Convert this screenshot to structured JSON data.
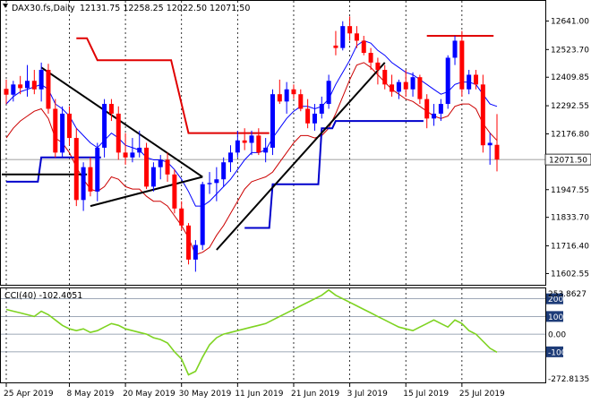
{
  "header": {
    "symbol": "DAX30.fs,Daily",
    "ohlc": "12131.75 12258.25 12022.50 12071.50"
  },
  "indicator": {
    "label": "CCI(40) -102.4051",
    "levels": [
      "200",
      "100",
      "0.00",
      "-100"
    ],
    "scale_max": "253.8627",
    "scale_min": "-272.8135"
  },
  "price_axis": {
    "ticks": [
      "12641.00",
      "12523.70",
      "12409.85",
      "12292.55",
      "12176.80",
      "11947.55",
      "11833.70",
      "11716.40",
      "11602.55"
    ],
    "current_price": "12071.50"
  },
  "date_axis": {
    "labels": [
      "25 Apr 2019",
      "8 May 2019",
      "20 May 2019",
      "30 May 2019",
      "11 Jun 2019",
      "21 Jun 2019",
      "3 Jul 2019",
      "15 Jul 2019",
      "25 Jul 2019"
    ]
  },
  "colors": {
    "bull": "#0000ff",
    "bear": "#ff0000",
    "bollinger_mid": "#0000ff",
    "bollinger_low": "#cc0000",
    "channel_red": "#e00000",
    "channel_blue": "#0000cc",
    "trendline": "#000000",
    "cci": "#7ed321",
    "axis_highlight": "#1e3c78"
  },
  "chart_data": {
    "type": "candlestick",
    "title": "DAX30.fs,Daily",
    "ylim": [
      11560,
      12720
    ],
    "candles": [
      {
        "d": "2019-04-25",
        "o": 12362,
        "h": 12400,
        "l": 12300,
        "c": 12338
      },
      {
        "d": "2019-04-26",
        "o": 12338,
        "h": 12395,
        "l": 12310,
        "c": 12380
      },
      {
        "d": "2019-04-29",
        "o": 12380,
        "h": 12415,
        "l": 12340,
        "c": 12365
      },
      {
        "d": "2019-04-30",
        "o": 12365,
        "h": 12460,
        "l": 12330,
        "c": 12395
      },
      {
        "d": "2019-05-01",
        "o": 12395,
        "h": 12440,
        "l": 12340,
        "c": 12360
      },
      {
        "d": "2019-05-02",
        "o": 12360,
        "h": 12470,
        "l": 12310,
        "c": 12440
      },
      {
        "d": "2019-05-03",
        "o": 12440,
        "h": 12465,
        "l": 12260,
        "c": 12280
      },
      {
        "d": "2019-05-06",
        "o": 12280,
        "h": 12320,
        "l": 12080,
        "c": 12100
      },
      {
        "d": "2019-05-07",
        "o": 12100,
        "h": 12290,
        "l": 12080,
        "c": 12260
      },
      {
        "d": "2019-05-08",
        "o": 12260,
        "h": 12290,
        "l": 12130,
        "c": 12160
      },
      {
        "d": "2019-05-09",
        "o": 12160,
        "h": 12200,
        "l": 11880,
        "c": 11905
      },
      {
        "d": "2019-05-10",
        "o": 11905,
        "h": 12060,
        "l": 11860,
        "c": 12040
      },
      {
        "d": "2019-05-13",
        "o": 12040,
        "h": 12080,
        "l": 11920,
        "c": 11940
      },
      {
        "d": "2019-05-14",
        "o": 11940,
        "h": 12140,
        "l": 11900,
        "c": 12120
      },
      {
        "d": "2019-05-15",
        "o": 12120,
        "h": 12320,
        "l": 12080,
        "c": 12300
      },
      {
        "d": "2019-05-16",
        "o": 12300,
        "h": 12320,
        "l": 12230,
        "c": 12260
      },
      {
        "d": "2019-05-17",
        "o": 12260,
        "h": 12290,
        "l": 12070,
        "c": 12100
      },
      {
        "d": "2019-05-20",
        "o": 12100,
        "h": 12180,
        "l": 12050,
        "c": 12080
      },
      {
        "d": "2019-05-21",
        "o": 12080,
        "h": 12160,
        "l": 12060,
        "c": 12100
      },
      {
        "d": "2019-05-22",
        "o": 12100,
        "h": 12190,
        "l": 12080,
        "c": 12120
      },
      {
        "d": "2019-05-23",
        "o": 12120,
        "h": 12140,
        "l": 11950,
        "c": 11960
      },
      {
        "d": "2019-05-24",
        "o": 11960,
        "h": 12060,
        "l": 11940,
        "c": 12040
      },
      {
        "d": "2019-05-27",
        "o": 12040,
        "h": 12090,
        "l": 11990,
        "c": 12070
      },
      {
        "d": "2019-05-28",
        "o": 12070,
        "h": 12100,
        "l": 11980,
        "c": 12010
      },
      {
        "d": "2019-05-29",
        "o": 12010,
        "h": 12030,
        "l": 11850,
        "c": 11870
      },
      {
        "d": "2019-05-30",
        "o": 11870,
        "h": 11900,
        "l": 11780,
        "c": 11800
      },
      {
        "d": "2019-05-31",
        "o": 11800,
        "h": 11810,
        "l": 11640,
        "c": 11660
      },
      {
        "d": "2019-06-03",
        "o": 11660,
        "h": 11740,
        "l": 11610,
        "c": 11720
      },
      {
        "d": "2019-06-04",
        "o": 11720,
        "h": 11980,
        "l": 11700,
        "c": 11970
      },
      {
        "d": "2019-06-05",
        "o": 11970,
        "h": 12020,
        "l": 11930,
        "c": 11975
      },
      {
        "d": "2019-06-06",
        "o": 11975,
        "h": 12040,
        "l": 11900,
        "c": 11990
      },
      {
        "d": "2019-06-07",
        "o": 11990,
        "h": 12080,
        "l": 11960,
        "c": 12060
      },
      {
        "d": "2019-06-10",
        "o": 12060,
        "h": 12130,
        "l": 12020,
        "c": 12100
      },
      {
        "d": "2019-06-11",
        "o": 12100,
        "h": 12190,
        "l": 12080,
        "c": 12150
      },
      {
        "d": "2019-06-12",
        "o": 12150,
        "h": 12200,
        "l": 12110,
        "c": 12140
      },
      {
        "d": "2019-06-13",
        "o": 12140,
        "h": 12190,
        "l": 12090,
        "c": 12170
      },
      {
        "d": "2019-06-14",
        "o": 12170,
        "h": 12200,
        "l": 12090,
        "c": 12100
      },
      {
        "d": "2019-06-17",
        "o": 12100,
        "h": 12160,
        "l": 12060,
        "c": 12120
      },
      {
        "d": "2019-06-18",
        "o": 12120,
        "h": 12360,
        "l": 12090,
        "c": 12340
      },
      {
        "d": "2019-06-19",
        "o": 12340,
        "h": 12400,
        "l": 12300,
        "c": 12310
      },
      {
        "d": "2019-06-20",
        "o": 12310,
        "h": 12390,
        "l": 12260,
        "c": 12360
      },
      {
        "d": "2019-06-21",
        "o": 12360,
        "h": 12380,
        "l": 12320,
        "c": 12340
      },
      {
        "d": "2019-06-24",
        "o": 12340,
        "h": 12360,
        "l": 12270,
        "c": 12280
      },
      {
        "d": "2019-06-25",
        "o": 12280,
        "h": 12320,
        "l": 12200,
        "c": 12220
      },
      {
        "d": "2019-06-26",
        "o": 12220,
        "h": 12300,
        "l": 12190,
        "c": 12260
      },
      {
        "d": "2019-06-27",
        "o": 12260,
        "h": 12330,
        "l": 12240,
        "c": 12300
      },
      {
        "d": "2019-06-28",
        "o": 12300,
        "h": 12420,
        "l": 12280,
        "c": 12395
      },
      {
        "d": "2019-07-01",
        "o": 12540,
        "h": 12600,
        "l": 12500,
        "c": 12530
      },
      {
        "d": "2019-07-02",
        "o": 12530,
        "h": 12640,
        "l": 12520,
        "c": 12620
      },
      {
        "d": "2019-07-03",
        "o": 12620,
        "h": 12660,
        "l": 12560,
        "c": 12590
      },
      {
        "d": "2019-07-04",
        "o": 12590,
        "h": 12620,
        "l": 12530,
        "c": 12560
      },
      {
        "d": "2019-07-05",
        "o": 12560,
        "h": 12580,
        "l": 12500,
        "c": 12510
      },
      {
        "d": "2019-07-08",
        "o": 12510,
        "h": 12530,
        "l": 12440,
        "c": 12470
      },
      {
        "d": "2019-07-09",
        "o": 12470,
        "h": 12490,
        "l": 12380,
        "c": 12440
      },
      {
        "d": "2019-07-10",
        "o": 12440,
        "h": 12460,
        "l": 12360,
        "c": 12380
      },
      {
        "d": "2019-07-11",
        "o": 12380,
        "h": 12420,
        "l": 12330,
        "c": 12350
      },
      {
        "d": "2019-07-12",
        "o": 12350,
        "h": 12400,
        "l": 12320,
        "c": 12390
      },
      {
        "d": "2019-07-15",
        "o": 12390,
        "h": 12440,
        "l": 12330,
        "c": 12360
      },
      {
        "d": "2019-07-16",
        "o": 12360,
        "h": 12430,
        "l": 12330,
        "c": 12410
      },
      {
        "d": "2019-07-17",
        "o": 12410,
        "h": 12420,
        "l": 12300,
        "c": 12320
      },
      {
        "d": "2019-07-18",
        "o": 12320,
        "h": 12340,
        "l": 12200,
        "c": 12240
      },
      {
        "d": "2019-07-19",
        "o": 12240,
        "h": 12300,
        "l": 12210,
        "c": 12260
      },
      {
        "d": "2019-07-22",
        "o": 12260,
        "h": 12320,
        "l": 12230,
        "c": 12300
      },
      {
        "d": "2019-07-23",
        "o": 12300,
        "h": 12500,
        "l": 12280,
        "c": 12490
      },
      {
        "d": "2019-07-24",
        "o": 12490,
        "h": 12580,
        "l": 12460,
        "c": 12560
      },
      {
        "d": "2019-07-25",
        "o": 12560,
        "h": 12600,
        "l": 12330,
        "c": 12360
      },
      {
        "d": "2019-07-26",
        "o": 12360,
        "h": 12440,
        "l": 12340,
        "c": 12420
      },
      {
        "d": "2019-07-29",
        "o": 12420,
        "h": 12440,
        "l": 12360,
        "c": 12380
      },
      {
        "d": "2019-07-30",
        "o": 12380,
        "h": 12420,
        "l": 12100,
        "c": 12130
      },
      {
        "d": "2019-07-31",
        "o": 12130,
        "h": 12180,
        "l": 12050,
        "c": 12140
      },
      {
        "d": "2019-08-01",
        "o": 12131.75,
        "h": 12258.25,
        "l": 12022.5,
        "c": 12071.5
      }
    ],
    "bollinger_mid": [
      12300,
      12330,
      12350,
      12360,
      12370,
      12380,
      12360,
      12300,
      12280,
      12250,
      12200,
      12170,
      12140,
      12120,
      12150,
      12180,
      12160,
      12130,
      12120,
      12110,
      12080,
      12070,
      12070,
      12060,
      12030,
      11990,
      11940,
      11880,
      11880,
      11900,
      11930,
      11960,
      11990,
      12030,
      12070,
      12100,
      12100,
      12110,
      12160,
      12200,
      12240,
      12270,
      12290,
      12290,
      12280,
      12290,
      12320,
      12380,
      12430,
      12480,
      12540,
      12560,
      12550,
      12520,
      12500,
      12470,
      12450,
      12430,
      12420,
      12400,
      12380,
      12360,
      12340,
      12350,
      12380,
      12390,
      12390,
      12380,
      12340,
      12300,
      12290
    ],
    "bollinger_low": [
      12160,
      12200,
      12230,
      12250,
      12270,
      12280,
      12240,
      12160,
      12140,
      12100,
      12040,
      11990,
      11950,
      11940,
      11960,
      12000,
      11990,
      11960,
      11950,
      11950,
      11920,
      11900,
      11900,
      11880,
      11840,
      11800,
      11750,
      11680,
      11690,
      11710,
      11760,
      11800,
      11850,
      11900,
      11950,
      11980,
      11990,
      12000,
      12020,
      12060,
      12100,
      12140,
      12170,
      12170,
      12160,
      12170,
      12200,
      12260,
      12330,
      12400,
      12460,
      12470,
      12450,
      12420,
      12390,
      12360,
      12340,
      12320,
      12310,
      12290,
      12270,
      12250,
      12240,
      12250,
      12290,
      12300,
      12300,
      12280,
      12220,
      12180,
      12150
    ],
    "channel_high": [
      {
        "from": "2019-05-09",
        "to": "2019-05-10",
        "value": 12570
      },
      {
        "from": "2019-05-14",
        "to": "2019-05-28",
        "value": 12480
      },
      {
        "from": "2019-05-31",
        "to": "2019-06-17",
        "value": 12180
      },
      {
        "from": "2019-07-18",
        "to": "2019-07-31",
        "value": 12580
      }
    ],
    "channel_low": [
      {
        "from": "2019-04-25",
        "to": "2019-05-01",
        "value": 11980
      },
      {
        "from": "2019-05-02",
        "to": "2019-05-14",
        "value": 12080
      },
      {
        "from": "2019-06-12",
        "to": "2019-06-17",
        "value": 11790
      },
      {
        "from": "2019-06-18",
        "to": "2019-06-26",
        "value": 11970
      },
      {
        "from": "2019-06-27",
        "to": "2019-06-28",
        "value": 12200
      },
      {
        "from": "2019-07-01",
        "to": "2019-07-17",
        "value": 12230
      }
    ],
    "support_line": {
      "from": "2019-04-25",
      "to": "2019-05-10",
      "value": 12010
    },
    "trendlines": [
      {
        "x1": "2019-05-02",
        "y1": 12450,
        "x2": "2019-06-04",
        "y2": 12000
      },
      {
        "x1": "2019-05-13",
        "y1": 11880,
        "x2": "2019-06-04",
        "y2": 12000
      },
      {
        "x1": "2019-06-06",
        "y1": 11700,
        "x2": "2019-07-10",
        "y2": 12470
      }
    ],
    "cci": {
      "label": "CCI(40)",
      "last": -102.4051,
      "ylim": [
        -272.8135,
        253.8627
      ],
      "levels": [
        200,
        100,
        0,
        -100
      ],
      "values": [
        140,
        130,
        120,
        110,
        100,
        130,
        110,
        80,
        50,
        30,
        20,
        30,
        10,
        20,
        40,
        60,
        50,
        30,
        20,
        10,
        0,
        -20,
        -30,
        -50,
        -100,
        -140,
        -230,
        -210,
        -130,
        -60,
        -20,
        0,
        10,
        20,
        30,
        40,
        50,
        60,
        80,
        100,
        120,
        140,
        160,
        180,
        200,
        220,
        250,
        220,
        200,
        180,
        160,
        140,
        120,
        100,
        80,
        60,
        40,
        30,
        20,
        40,
        60,
        80,
        60,
        40,
        80,
        60,
        20,
        0,
        -40,
        -80,
        -102.4
      ]
    }
  }
}
